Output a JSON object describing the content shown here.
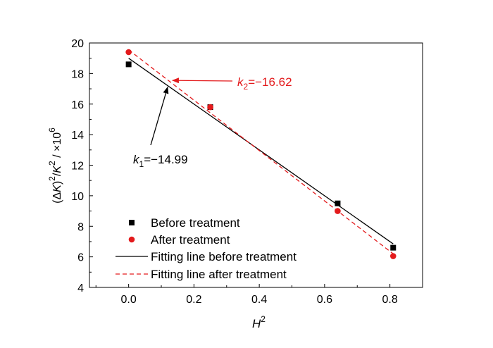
{
  "chart_data": {
    "type": "scatter",
    "xlabel": "H",
    "xlabel_sup": "2",
    "ylabel_parts": [
      "(Δ",
      "K",
      ")",
      "2",
      "/",
      "K",
      "2",
      " / ×10",
      "6"
    ],
    "xlim": [
      -0.12,
      0.9
    ],
    "ylim": [
      4,
      20
    ],
    "x_ticks": [
      0.0,
      0.2,
      0.4,
      0.6,
      0.8
    ],
    "x_tick_labels": [
      "0.0",
      "0.2",
      "0.4",
      "0.6",
      "0.8"
    ],
    "y_ticks": [
      4,
      6,
      8,
      10,
      12,
      14,
      16,
      18,
      20
    ],
    "y_tick_labels": [
      "4",
      "6",
      "8",
      "10",
      "12",
      "14",
      "16",
      "18",
      "20"
    ],
    "grid": false,
    "legend_position": "bottom-left",
    "series": [
      {
        "name": "Before treatment",
        "marker": "square",
        "color": "#000000",
        "x": [
          0.0,
          0.25,
          0.64,
          0.81
        ],
        "y": [
          18.6,
          15.8,
          9.5,
          6.6
        ]
      },
      {
        "name": "After treatment",
        "marker": "circle",
        "color": "#e31a1c",
        "x": [
          0.0,
          0.25,
          0.64,
          0.81
        ],
        "y": [
          19.4,
          15.8,
          9.0,
          6.05
        ]
      }
    ],
    "fits": [
      {
        "name": "Fitting line before treatment",
        "style": "solid",
        "color": "#000000",
        "x": [
          0.0,
          0.81
        ],
        "y": [
          19.0,
          6.85
        ]
      },
      {
        "name": "Fitting line after treatment",
        "style": "dashed",
        "color": "#e31a1c",
        "x": [
          0.0,
          0.81
        ],
        "y": [
          19.55,
          6.2
        ]
      }
    ],
    "annotations": [
      {
        "id": "k2",
        "label": "k",
        "sub": "2",
        "value": "=−16.62",
        "color": "#e31a1c",
        "arrow_to": [
          0.13,
          17.55
        ]
      },
      {
        "id": "k1",
        "label": "k",
        "sub": "1",
        "value": "=−14.99",
        "color": "#000000",
        "arrow_to": [
          0.115,
          17.2
        ]
      }
    ]
  }
}
